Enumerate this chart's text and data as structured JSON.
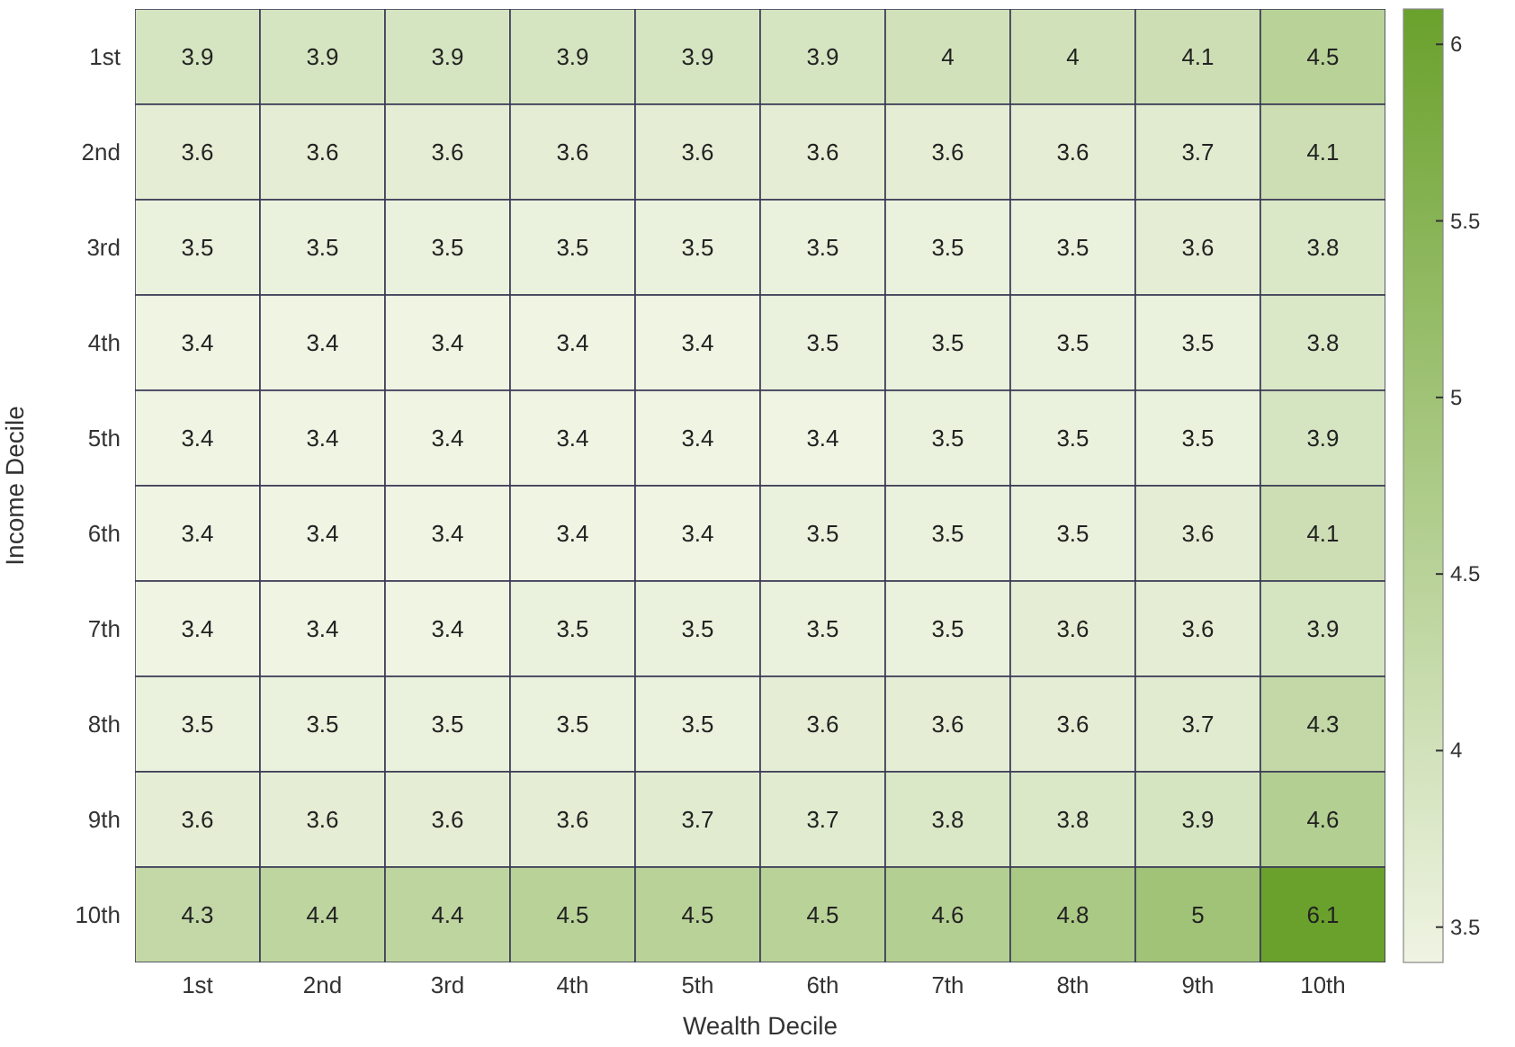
{
  "chart_data": {
    "type": "heatmap",
    "xlabel": "Wealth Decile",
    "ylabel": "Income Decile",
    "categories": [
      "1st",
      "2nd",
      "3rd",
      "4th",
      "5th",
      "6th",
      "7th",
      "8th",
      "9th",
      "10th"
    ],
    "y_categories": [
      "1st",
      "2nd",
      "3rd",
      "4th",
      "5th",
      "6th",
      "7th",
      "8th",
      "9th",
      "10th"
    ],
    "cells": [
      [
        3.9,
        3.9,
        3.9,
        3.9,
        3.9,
        3.9,
        4,
        4,
        4.1,
        4.5
      ],
      [
        3.6,
        3.6,
        3.6,
        3.6,
        3.6,
        3.6,
        3.6,
        3.6,
        3.7,
        4.1
      ],
      [
        3.5,
        3.5,
        3.5,
        3.5,
        3.5,
        3.5,
        3.5,
        3.5,
        3.6,
        3.8
      ],
      [
        3.4,
        3.4,
        3.4,
        3.4,
        3.4,
        3.5,
        3.5,
        3.5,
        3.5,
        3.8
      ],
      [
        3.4,
        3.4,
        3.4,
        3.4,
        3.4,
        3.4,
        3.5,
        3.5,
        3.5,
        3.9
      ],
      [
        3.4,
        3.4,
        3.4,
        3.4,
        3.4,
        3.5,
        3.5,
        3.5,
        3.6,
        4.1
      ],
      [
        3.4,
        3.4,
        3.4,
        3.5,
        3.5,
        3.5,
        3.5,
        3.6,
        3.6,
        3.9
      ],
      [
        3.5,
        3.5,
        3.5,
        3.5,
        3.5,
        3.6,
        3.6,
        3.6,
        3.7,
        4.3
      ],
      [
        3.6,
        3.6,
        3.6,
        3.6,
        3.7,
        3.7,
        3.8,
        3.8,
        3.9,
        4.6
      ],
      [
        4.3,
        4.4,
        4.4,
        4.5,
        4.5,
        4.5,
        4.6,
        4.8,
        5,
        6.1
      ]
    ],
    "colors": [
      "#eff4e3",
      "#6aa12c"
    ],
    "clim": [
      3.4,
      6.1
    ],
    "cticks": [
      3.5,
      4,
      4.5,
      5,
      5.5,
      6
    ],
    "data_labels": true
  }
}
